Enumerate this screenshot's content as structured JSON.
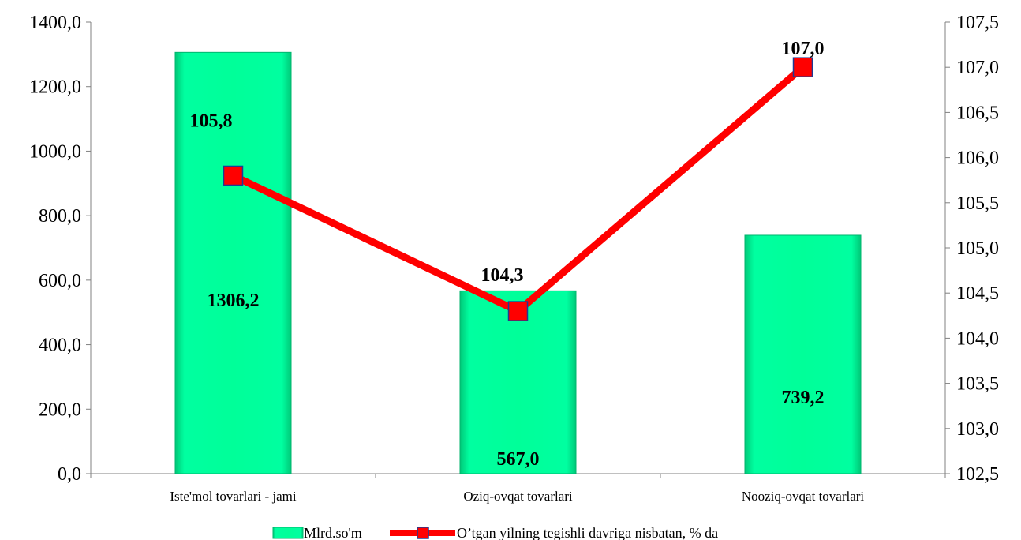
{
  "chart_data": {
    "type": "bar",
    "categories": [
      "Iste'mol tovarlari - jami",
      "Oziq-ovqat tovarlari",
      "Nooziq-ovqat tovarlari"
    ],
    "series": [
      {
        "name": "Mlrd.so'm",
        "type": "bar",
        "axis": "left",
        "values": [
          1306.2,
          567.0,
          739.2
        ],
        "labels": [
          "1306,2",
          "567,0",
          "739,2"
        ],
        "color": "#00FF99"
      },
      {
        "name": "O’tgan yilning tegishli davriga nisbatan, % da",
        "type": "line",
        "axis": "right",
        "values": [
          105.8,
          104.3,
          107.0
        ],
        "labels": [
          "105,8",
          "104,3",
          "107,0"
        ],
        "color": "#FF0000"
      }
    ],
    "y_left": {
      "min": 0,
      "max": 1400,
      "ticks": [
        0,
        200,
        400,
        600,
        800,
        1000,
        1200,
        1400
      ],
      "tick_labels": [
        "0,0",
        "200,0",
        "400,0",
        "600,0",
        "800,0",
        "1000,0",
        "1200,0",
        "1400,0"
      ]
    },
    "y_right": {
      "min": 102.5,
      "max": 107.5,
      "ticks": [
        102.5,
        103.0,
        103.5,
        104.0,
        104.5,
        105.0,
        105.5,
        106.0,
        106.5,
        107.0,
        107.5
      ],
      "tick_labels": [
        "102,5",
        "103,0",
        "103,5",
        "104,0",
        "104,5",
        "105,0",
        "105,5",
        "106,0",
        "106,5",
        "107,0",
        "107,5"
      ]
    },
    "grid": false,
    "legend_position": "bottom"
  }
}
